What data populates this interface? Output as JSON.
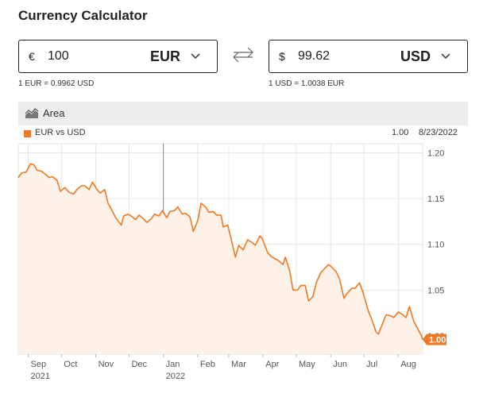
{
  "header": {
    "title": "Currency Calculator"
  },
  "converter": {
    "from": {
      "symbol": "€",
      "amount": "100",
      "code": "EUR",
      "rate": "1 EUR = 0.9962 USD"
    },
    "to": {
      "symbol": "$",
      "amount": "99.62",
      "code": "USD",
      "rate": "1 USD = 1.0038 EUR"
    },
    "swap_icon": "swap-arrows-icon"
  },
  "chart_toolbar": {
    "type_label": "Area",
    "type_icon": "area-chart-icon"
  },
  "legend": {
    "series_label": "EUR vs USD",
    "last_value": "1.00",
    "last_date": "8/23/2022"
  },
  "colors": {
    "accent": "#ee7a23",
    "fill": "#fdf1e8",
    "grid": "#e6e6e6"
  },
  "chart_data": {
    "type": "area",
    "series": [
      {
        "name": "EUR vs USD",
        "points": [
          [
            "2021-08-23",
            1.173
          ],
          [
            "2021-08-26",
            1.178
          ],
          [
            "2021-08-30",
            1.179
          ],
          [
            "2021-09-03",
            1.188
          ],
          [
            "2021-09-06",
            1.187
          ],
          [
            "2021-09-09",
            1.181
          ],
          [
            "2021-09-13",
            1.18
          ],
          [
            "2021-09-16",
            1.177
          ],
          [
            "2021-09-20",
            1.173
          ],
          [
            "2021-09-23",
            1.174
          ],
          [
            "2021-09-27",
            1.17
          ],
          [
            "2021-09-30",
            1.158
          ],
          [
            "2021-10-04",
            1.162
          ],
          [
            "2021-10-08",
            1.157
          ],
          [
            "2021-10-12",
            1.155
          ],
          [
            "2021-10-15",
            1.16
          ],
          [
            "2021-10-19",
            1.164
          ],
          [
            "2021-10-22",
            1.164
          ],
          [
            "2021-10-26",
            1.16
          ],
          [
            "2021-10-29",
            1.168
          ],
          [
            "2021-11-02",
            1.16
          ],
          [
            "2021-11-05",
            1.156
          ],
          [
            "2021-11-09",
            1.16
          ],
          [
            "2021-11-12",
            1.145
          ],
          [
            "2021-11-16",
            1.136
          ],
          [
            "2021-11-19",
            1.129
          ],
          [
            "2021-11-24",
            1.121
          ],
          [
            "2021-11-26",
            1.131
          ],
          [
            "2021-11-30",
            1.133
          ],
          [
            "2021-12-03",
            1.131
          ],
          [
            "2021-12-07",
            1.127
          ],
          [
            "2021-12-10",
            1.132
          ],
          [
            "2021-12-14",
            1.128
          ],
          [
            "2021-12-17",
            1.124
          ],
          [
            "2021-12-21",
            1.128
          ],
          [
            "2021-12-24",
            1.133
          ],
          [
            "2021-12-28",
            1.131
          ],
          [
            "2021-12-31",
            1.137
          ],
          [
            "2022-01-04",
            1.129
          ],
          [
            "2022-01-07",
            1.136
          ],
          [
            "2022-01-11",
            1.137
          ],
          [
            "2022-01-14",
            1.141
          ],
          [
            "2022-01-18",
            1.133
          ],
          [
            "2022-01-21",
            1.134
          ],
          [
            "2022-01-25",
            1.13
          ],
          [
            "2022-01-28",
            1.114
          ],
          [
            "2022-02-01",
            1.126
          ],
          [
            "2022-02-04",
            1.145
          ],
          [
            "2022-02-08",
            1.141
          ],
          [
            "2022-02-11",
            1.135
          ],
          [
            "2022-02-15",
            1.136
          ],
          [
            "2022-02-18",
            1.132
          ],
          [
            "2022-02-22",
            1.132
          ],
          [
            "2022-02-24",
            1.119
          ],
          [
            "2022-02-28",
            1.121
          ],
          [
            "2022-03-03",
            1.107
          ],
          [
            "2022-03-07",
            1.086
          ],
          [
            "2022-03-10",
            1.099
          ],
          [
            "2022-03-14",
            1.094
          ],
          [
            "2022-03-18",
            1.105
          ],
          [
            "2022-03-22",
            1.102
          ],
          [
            "2022-03-25",
            1.099
          ],
          [
            "2022-03-29",
            1.109
          ],
          [
            "2022-03-31",
            1.107
          ],
          [
            "2022-04-05",
            1.091
          ],
          [
            "2022-04-08",
            1.087
          ],
          [
            "2022-04-12",
            1.084
          ],
          [
            "2022-04-14",
            1.083
          ],
          [
            "2022-04-19",
            1.078
          ],
          [
            "2022-04-21",
            1.086
          ],
          [
            "2022-04-25",
            1.071
          ],
          [
            "2022-04-28",
            1.05
          ],
          [
            "2022-05-02",
            1.05
          ],
          [
            "2022-05-05",
            1.055
          ],
          [
            "2022-05-09",
            1.055
          ],
          [
            "2022-05-12",
            1.038
          ],
          [
            "2022-05-16",
            1.043
          ],
          [
            "2022-05-19",
            1.058
          ],
          [
            "2022-05-23",
            1.069
          ],
          [
            "2022-05-26",
            1.073
          ],
          [
            "2022-05-30",
            1.078
          ],
          [
            "2022-06-02",
            1.075
          ],
          [
            "2022-06-06",
            1.07
          ],
          [
            "2022-06-09",
            1.062
          ],
          [
            "2022-06-13",
            1.041
          ],
          [
            "2022-06-15",
            1.045
          ],
          [
            "2022-06-20",
            1.052
          ],
          [
            "2022-06-23",
            1.052
          ],
          [
            "2022-06-27",
            1.058
          ],
          [
            "2022-06-30",
            1.048
          ],
          [
            "2022-07-05",
            1.027
          ],
          [
            "2022-07-08",
            1.018
          ],
          [
            "2022-07-12",
            1.004
          ],
          [
            "2022-07-14",
            1.002
          ],
          [
            "2022-07-18",
            1.014
          ],
          [
            "2022-07-21",
            1.023
          ],
          [
            "2022-07-25",
            1.022
          ],
          [
            "2022-07-28",
            1.02
          ],
          [
            "2022-08-01",
            1.026
          ],
          [
            "2022-08-04",
            1.024
          ],
          [
            "2022-08-08",
            1.02
          ],
          [
            "2022-08-11",
            1.032
          ],
          [
            "2022-08-15",
            1.016
          ],
          [
            "2022-08-18",
            1.009
          ],
          [
            "2022-08-22",
            1.0
          ],
          [
            "2022-08-23",
            0.996
          ]
        ]
      }
    ],
    "x_ticks": [
      {
        "date": "2021-09-01",
        "label": "Sep",
        "year": "2021"
      },
      {
        "date": "2021-10-01",
        "label": "Oct"
      },
      {
        "date": "2021-11-01",
        "label": "Nov"
      },
      {
        "date": "2021-12-01",
        "label": "Dec"
      },
      {
        "date": "2022-01-01",
        "label": "Jan",
        "year": "2022"
      },
      {
        "date": "2022-02-01",
        "label": "Feb"
      },
      {
        "date": "2022-03-01",
        "label": "Mar"
      },
      {
        "date": "2022-04-01",
        "label": "Apr"
      },
      {
        "date": "2022-05-01",
        "label": "May"
      },
      {
        "date": "2022-06-01",
        "label": "Jun"
      },
      {
        "date": "2022-07-01",
        "label": "Jul"
      },
      {
        "date": "2022-08-01",
        "label": "Aug"
      }
    ],
    "y_ticks": [
      "1.20",
      "1.15",
      "1.10",
      "1.05",
      "1.00"
    ],
    "xlim": [
      "2021-08-23",
      "2022-08-23"
    ],
    "ylim": [
      0.98,
      1.21
    ],
    "year_marker": "2022-01-01",
    "last_label": "1.00",
    "grid": true
  }
}
